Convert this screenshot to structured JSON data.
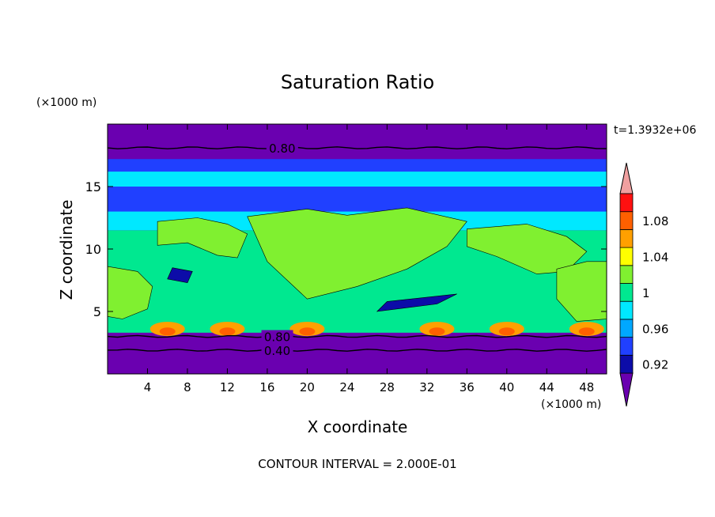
{
  "chart_data": {
    "type": "heatmap",
    "title": "Saturation Ratio",
    "xlabel": "X coordinate",
    "ylabel": "Z coordinate",
    "x_unit": "(×1000 m)",
    "y_unit": "(×1000 m)",
    "time_label": "t=1.3932e+06",
    "footer": "CONTOUR INTERVAL = 2.000E-01",
    "xlim": [
      0,
      50
    ],
    "ylim": [
      0,
      20
    ],
    "x_ticks": [
      {
        "value": 4,
        "label": "4"
      },
      {
        "value": 8,
        "label": "8"
      },
      {
        "value": 12,
        "label": "12"
      },
      {
        "value": 16,
        "label": "16"
      },
      {
        "value": 20,
        "label": "20"
      },
      {
        "value": 24,
        "label": "24"
      },
      {
        "value": 28,
        "label": "28"
      },
      {
        "value": 32,
        "label": "32"
      },
      {
        "value": 36,
        "label": "36"
      },
      {
        "value": 40,
        "label": "40"
      },
      {
        "value": 44,
        "label": "44"
      },
      {
        "value": 48,
        "label": "48"
      }
    ],
    "y_ticks": [
      {
        "value": 5,
        "label": "5"
      },
      {
        "value": 10,
        "label": "10"
      },
      {
        "value": 15,
        "label": "15"
      }
    ],
    "contour_lines": [
      {
        "value": 0.8,
        "label": "0.80",
        "z": 18.1
      },
      {
        "value": 0.8,
        "label": "0.80",
        "z": 3.0
      },
      {
        "value": 0.4,
        "label": "0.40",
        "z": 1.9
      }
    ],
    "colorbar": {
      "levels": [
        0.92,
        0.94,
        0.96,
        0.98,
        1.0,
        1.02,
        1.04,
        1.06,
        1.08,
        1.1
      ],
      "colors": [
        "#6a00b0",
        "#0c0ca8",
        "#2040ff",
        "#00a8ff",
        "#00e8ff",
        "#00e890",
        "#80f030",
        "#ffff00",
        "#ffa000",
        "#ff6000",
        "#ff1010",
        "#f0a0a0"
      ],
      "tick_labels": [
        {
          "value": 0.92,
          "label": "0.92"
        },
        {
          "value": 0.96,
          "label": "0.96"
        },
        {
          "value": 1.0,
          "label": "1"
        },
        {
          "value": 1.04,
          "label": "1.04"
        },
        {
          "value": 1.08,
          "label": "1.08"
        }
      ]
    }
  }
}
